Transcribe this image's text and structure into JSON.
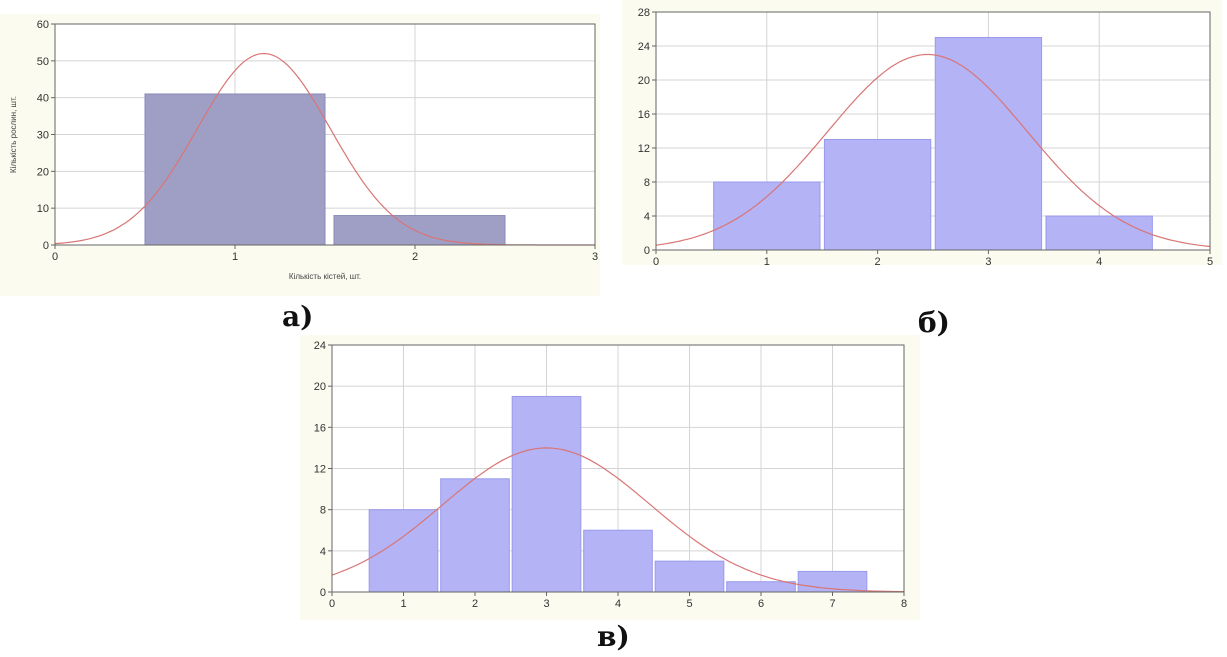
{
  "colors": {
    "panel_bg": "#fbfbf0",
    "plot_bg": "#ffffff",
    "grid": "#d4d4d4",
    "bar_a_fill": "#9f9fc6",
    "bar_a_stroke": "#8a8ab8",
    "bar_fill": "#b3b3f6",
    "bar_stroke": "#9a9aeb",
    "curve": "#d97575"
  },
  "chart_data": [
    {
      "id": "a",
      "panel_label": "а)",
      "type": "bar",
      "xlabel": "Кількість кістей, шт.",
      "ylabel": "Кількість рослин, шт.",
      "xlim": [
        0,
        3
      ],
      "ylim": [
        0,
        60
      ],
      "xticks": [
        0,
        1,
        2,
        3
      ],
      "yticks": [
        0,
        10,
        20,
        30,
        40,
        50,
        60
      ],
      "bins": [
        {
          "from": 0.5,
          "to": 1.5,
          "value": 41
        },
        {
          "from": 1.55,
          "to": 2.5,
          "value": 8
        }
      ],
      "curve": {
        "mean": 1.16,
        "sd": 0.37,
        "peak": 52
      },
      "grid": true
    },
    {
      "id": "b",
      "panel_label": "б)",
      "type": "bar",
      "xlabel": "",
      "ylabel": "",
      "xlim": [
        0,
        5
      ],
      "ylim": [
        0,
        28
      ],
      "xticks": [
        0,
        1,
        2,
        3,
        4,
        5
      ],
      "yticks": [
        0,
        4,
        8,
        12,
        16,
        20,
        24,
        28
      ],
      "bins": [
        {
          "from": 0.52,
          "to": 1.48,
          "value": 8
        },
        {
          "from": 1.52,
          "to": 2.48,
          "value": 13
        },
        {
          "from": 2.52,
          "to": 3.48,
          "value": 25
        },
        {
          "from": 3.52,
          "to": 4.48,
          "value": 4
        }
      ],
      "curve": {
        "mean": 2.45,
        "sd": 0.9,
        "peak": 23
      },
      "grid": true
    },
    {
      "id": "c",
      "panel_label": "в)",
      "type": "bar",
      "xlabel": "",
      "ylabel": "",
      "xlim": [
        0,
        8
      ],
      "ylim": [
        0,
        24
      ],
      "xticks": [
        0,
        1,
        2,
        3,
        4,
        5,
        6,
        7,
        8
      ],
      "yticks": [
        0,
        4,
        8,
        12,
        16,
        20,
        24
      ],
      "bins": [
        {
          "from": 0.52,
          "to": 1.48,
          "value": 8
        },
        {
          "from": 1.52,
          "to": 2.48,
          "value": 11
        },
        {
          "from": 2.52,
          "to": 3.48,
          "value": 19
        },
        {
          "from": 3.52,
          "to": 4.48,
          "value": 6
        },
        {
          "from": 4.52,
          "to": 5.48,
          "value": 3
        },
        {
          "from": 5.52,
          "to": 6.48,
          "value": 1
        },
        {
          "from": 6.52,
          "to": 7.48,
          "value": 2
        }
      ],
      "curve": {
        "mean": 3.0,
        "sd": 1.45,
        "peak": 14
      },
      "grid": true
    }
  ]
}
